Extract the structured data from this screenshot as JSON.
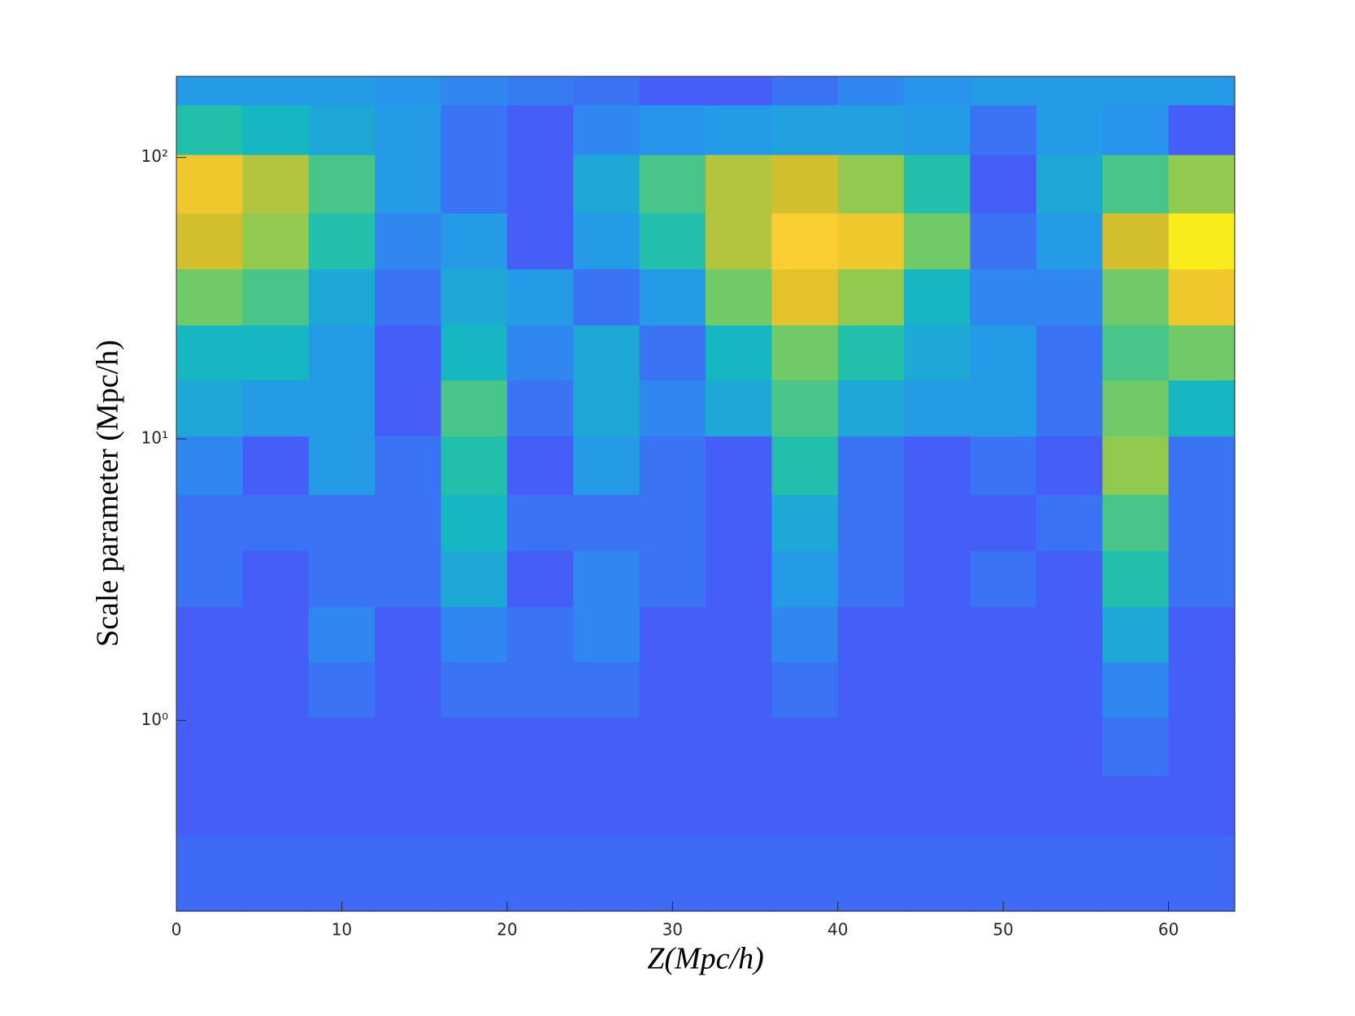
{
  "chart_data": {
    "type": "heatmap",
    "x_label": "Z(Mpc/h)",
    "y_label": "Scale parameter (Mpc/h)",
    "xlim": [
      0,
      64
    ],
    "xticks": [
      0,
      10,
      20,
      30,
      40,
      50,
      60
    ],
    "ylim": [
      0.21,
      194
    ],
    "y_scale": "log",
    "yticks": [
      {
        "value": 1,
        "label": "10⁰"
      },
      {
        "value": 10,
        "label": "10¹"
      },
      {
        "value": 100,
        "label": "10²"
      }
    ],
    "colormap": [
      "#3e26a8",
      "#475bf9",
      "#2796eb",
      "#12beb9",
      "#80cc59",
      "#dcbd29",
      "#fccf30",
      "#f9fa0e"
    ],
    "clim": [
      0,
      1
    ],
    "x": [
      2,
      6,
      10,
      14,
      18,
      22,
      26,
      30,
      34,
      38,
      42,
      46,
      50,
      54,
      58,
      62
    ],
    "y": [
      180,
      130,
      80,
      50,
      32,
      20,
      13,
      8,
      5,
      3.2,
      2,
      1.3,
      0.8,
      0.5,
      0.3
    ],
    "z": [
      [
        0.3,
        0.3,
        0.3,
        0.28,
        0.25,
        0.22,
        0.2,
        0.15,
        0.15,
        0.2,
        0.25,
        0.28,
        0.3,
        0.3,
        0.3,
        0.3
      ],
      [
        0.45,
        0.4,
        0.35,
        0.3,
        0.2,
        0.15,
        0.25,
        0.28,
        0.3,
        0.32,
        0.32,
        0.3,
        0.2,
        0.3,
        0.28,
        0.15
      ],
      [
        0.8,
        0.65,
        0.5,
        0.3,
        0.2,
        0.15,
        0.35,
        0.5,
        0.65,
        0.7,
        0.6,
        0.45,
        0.15,
        0.35,
        0.5,
        0.6
      ],
      [
        0.7,
        0.6,
        0.45,
        0.25,
        0.3,
        0.15,
        0.3,
        0.45,
        0.65,
        0.85,
        0.8,
        0.55,
        0.2,
        0.3,
        0.7,
        0.95
      ],
      [
        0.55,
        0.5,
        0.35,
        0.2,
        0.35,
        0.3,
        0.2,
        0.3,
        0.55,
        0.75,
        0.6,
        0.4,
        0.25,
        0.25,
        0.55,
        0.8
      ],
      [
        0.4,
        0.4,
        0.3,
        0.15,
        0.4,
        0.25,
        0.35,
        0.2,
        0.4,
        0.55,
        0.45,
        0.35,
        0.3,
        0.2,
        0.5,
        0.55
      ],
      [
        0.35,
        0.3,
        0.3,
        0.15,
        0.5,
        0.2,
        0.35,
        0.25,
        0.35,
        0.5,
        0.35,
        0.3,
        0.3,
        0.2,
        0.55,
        0.4
      ],
      [
        0.25,
        0.15,
        0.3,
        0.2,
        0.45,
        0.15,
        0.3,
        0.2,
        0.15,
        0.45,
        0.2,
        0.15,
        0.2,
        0.15,
        0.6,
        0.2
      ],
      [
        0.2,
        0.2,
        0.2,
        0.2,
        0.4,
        0.2,
        0.2,
        0.2,
        0.15,
        0.35,
        0.2,
        0.15,
        0.15,
        0.2,
        0.5,
        0.2
      ],
      [
        0.2,
        0.15,
        0.2,
        0.2,
        0.35,
        0.15,
        0.25,
        0.2,
        0.15,
        0.3,
        0.2,
        0.15,
        0.2,
        0.15,
        0.45,
        0.2
      ],
      [
        0.15,
        0.15,
        0.25,
        0.15,
        0.25,
        0.2,
        0.25,
        0.15,
        0.15,
        0.25,
        0.15,
        0.15,
        0.15,
        0.15,
        0.35,
        0.15
      ],
      [
        0.15,
        0.15,
        0.2,
        0.15,
        0.2,
        0.2,
        0.2,
        0.15,
        0.15,
        0.2,
        0.15,
        0.15,
        0.15,
        0.15,
        0.25,
        0.15
      ],
      [
        0.15,
        0.15,
        0.15,
        0.15,
        0.15,
        0.15,
        0.15,
        0.15,
        0.15,
        0.15,
        0.15,
        0.15,
        0.15,
        0.15,
        0.2,
        0.15
      ],
      [
        0.15,
        0.15,
        0.15,
        0.15,
        0.15,
        0.15,
        0.15,
        0.15,
        0.15,
        0.15,
        0.15,
        0.15,
        0.15,
        0.15,
        0.15,
        0.15
      ],
      [
        0.18,
        0.18,
        0.18,
        0.18,
        0.18,
        0.18,
        0.18,
        0.18,
        0.18,
        0.18,
        0.18,
        0.18,
        0.18,
        0.18,
        0.18,
        0.18
      ]
    ]
  }
}
